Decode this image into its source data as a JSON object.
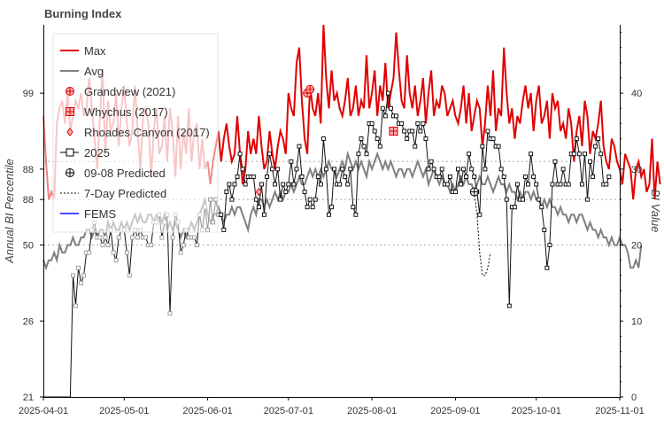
{
  "chart_data": {
    "type": "line",
    "title": "Burning Index",
    "xlabel": "",
    "ylabel_left": "Annual BI Percentile",
    "ylabel_right": "BI Value",
    "x_ticks": [
      "2025-04-01",
      "2025-05-01",
      "2025-06-01",
      "2025-07-01",
      "2025-08-01",
      "2025-09-01",
      "2025-10-01",
      "2025-11-01"
    ],
    "xlim": [
      "2025-04-01",
      "2025-11-01"
    ],
    "ylim_right": [
      0,
      49
    ],
    "right_ticks": [
      0,
      10,
      20,
      30,
      40
    ],
    "left_ticks": [
      {
        "label": "21",
        "bi": 0
      },
      {
        "label": "26",
        "bi": 10
      },
      {
        "label": "50",
        "bi": 20
      },
      {
        "label": "88",
        "bi": 26
      },
      {
        "label": "88",
        "bi": 30
      },
      {
        "label": "99",
        "bi": 40
      }
    ],
    "reference_lines_bi": [
      20,
      26,
      31
    ],
    "grid": false,
    "legend_placement": "top-left",
    "legend": [
      "Max",
      "Avg",
      "Grandview (2021)",
      "Whychus (2017)",
      "Rhoades Canyon (2017)",
      "2025",
      "09-08 Predicted",
      "7-Day Predicted",
      "FEMS"
    ],
    "colors": {
      "max": "#e00000",
      "max_faded": "#f08080",
      "avg": "#808080",
      "avg_faded": "#c0c0c0",
      "current": "#111111",
      "predicted": "#111111",
      "fems": "#4a4aff",
      "reference": "#aaaaaa"
    },
    "series": [
      {
        "name": "Max",
        "start": "2025-04-01",
        "values": [
          37,
          31,
          26,
          27,
          26,
          36,
          38,
          39,
          36,
          40,
          35,
          37,
          39,
          38,
          40,
          37,
          38,
          42,
          38,
          34,
          30,
          37,
          43,
          32,
          39,
          35,
          36,
          40,
          33,
          38,
          41,
          36,
          33,
          35,
          41,
          35,
          30,
          37,
          38,
          36,
          29,
          35,
          38,
          32,
          33,
          37,
          31,
          38,
          35,
          29,
          37,
          30,
          35,
          32,
          38,
          31,
          35,
          36,
          30,
          34,
          30,
          31,
          28,
          31,
          33,
          35,
          31,
          34,
          36,
          33,
          31,
          32,
          37,
          32,
          28,
          30,
          35,
          32,
          34,
          32,
          37,
          33,
          30,
          31,
          35,
          32,
          30,
          33,
          35,
          34,
          32,
          40,
          38,
          37,
          44,
          46,
          39,
          34,
          32,
          41,
          38,
          37,
          40,
          36,
          49,
          42,
          38,
          43,
          39,
          40,
          38,
          37,
          39,
          42,
          37,
          38,
          41,
          37,
          39,
          38,
          45,
          38,
          40,
          43,
          37,
          41,
          39,
          44,
          38,
          40,
          42,
          48,
          43,
          39,
          38,
          45,
          40,
          38,
          41,
          37,
          39,
          42,
          36,
          40,
          43,
          37,
          39,
          38,
          41,
          40,
          37,
          38,
          39,
          37,
          36,
          38,
          41,
          36,
          40,
          35,
          37,
          39,
          38,
          33,
          36,
          41,
          37,
          43,
          35,
          38,
          37,
          46,
          40,
          36,
          38,
          34,
          37,
          36,
          39,
          41,
          38,
          40,
          35,
          39,
          41,
          36,
          37,
          39,
          34,
          40,
          38,
          39,
          35,
          36,
          34,
          38,
          36,
          31,
          35,
          37,
          33,
          39,
          37,
          32,
          35,
          34,
          36,
          39,
          33,
          31,
          30,
          34,
          33,
          31,
          30,
          28,
          32,
          31,
          30,
          26,
          30,
          31,
          29,
          30,
          27,
          28,
          34,
          26,
          31,
          28
        ]
      },
      {
        "name": "Avg",
        "start": "2025-04-01",
        "values": [
          18,
          17,
          18,
          18,
          19,
          18,
          20,
          19,
          19,
          20,
          20,
          21,
          20,
          20,
          21,
          21,
          22,
          22,
          21,
          22,
          21,
          22,
          22,
          21,
          23,
          22,
          23,
          22,
          22,
          23,
          22,
          23,
          22,
          23,
          24,
          23,
          24,
          23,
          23,
          24,
          24,
          23,
          24,
          24,
          23,
          24,
          22,
          23,
          22,
          23,
          22,
          21,
          22,
          21,
          22,
          23,
          22,
          23,
          24,
          25,
          26,
          24,
          23,
          24,
          24,
          25,
          24,
          23,
          24,
          24,
          25,
          24,
          25,
          25,
          24,
          23,
          22,
          24,
          25,
          24,
          26,
          26,
          25,
          26,
          25,
          26,
          27,
          26,
          27,
          26,
          27,
          27,
          28,
          27,
          28,
          29,
          28,
          28,
          29,
          30,
          29,
          30,
          29,
          30,
          29,
          30,
          31,
          30,
          30,
          29,
          30,
          31,
          30,
          32,
          31,
          30,
          31,
          30,
          31,
          30,
          29,
          31,
          30,
          31,
          32,
          31,
          30,
          31,
          30,
          31,
          30,
          29,
          30,
          30,
          29,
          30,
          30,
          29,
          30,
          31,
          30,
          29,
          30,
          28,
          29,
          30,
          29,
          28,
          29,
          28,
          28,
          27,
          28,
          27,
          28,
          29,
          28,
          29,
          28,
          28,
          27,
          28,
          29,
          28,
          28,
          29,
          28,
          27,
          28,
          29,
          28,
          28,
          27,
          28,
          27,
          27,
          26,
          27,
          26,
          27,
          27,
          26,
          27,
          26,
          26,
          25,
          26,
          25,
          26,
          25,
          25,
          24,
          25,
          24,
          24,
          23,
          24,
          24,
          23,
          24,
          24,
          23,
          22,
          23,
          22,
          22,
          21,
          22,
          21,
          21,
          20,
          21,
          20,
          20,
          21,
          20,
          20,
          19,
          17,
          17,
          18,
          17,
          20
        ]
      },
      {
        "name": "2025",
        "start": "2025-04-01",
        "values": [
          0,
          0,
          0,
          0,
          0,
          0,
          0,
          0,
          0,
          0,
          0,
          16,
          12,
          17,
          15,
          16,
          19,
          19,
          22,
          23,
          21,
          21,
          20,
          21,
          20,
          22,
          19,
          18,
          21,
          22,
          22,
          19,
          16,
          21,
          22,
          21,
          22,
          21,
          21,
          20,
          20,
          23,
          23,
          24,
          21,
          23,
          24,
          11,
          21,
          24,
          23,
          19,
          20,
          22,
          21,
          21,
          21,
          20,
          24,
          22,
          25,
          22,
          26,
          23,
          26,
          24,
          24,
          22,
          27,
          28,
          26,
          28,
          29,
          32,
          30,
          28,
          29,
          29,
          29,
          26,
          25,
          28,
          24,
          29,
          32,
          30,
          28,
          30,
          26,
          28,
          27,
          28,
          31,
          28,
          30,
          33,
          29,
          27,
          25,
          26,
          25,
          26,
          29,
          28,
          34,
          30,
          24,
          25,
          30,
          28,
          28,
          30,
          29,
          28,
          30,
          25,
          24,
          32,
          34,
          33,
          32,
          36,
          36,
          35,
          34,
          33,
          38,
          37,
          40,
          38,
          37,
          37,
          36,
          36,
          35,
          34,
          35,
          35,
          33,
          36,
          35,
          36,
          34,
          30,
          31,
          30,
          29,
          29,
          30,
          28,
          28,
          29,
          27,
          27,
          30,
          28,
          30,
          29,
          32,
          30,
          29,
          27,
          24,
          33,
          30,
          35,
          34,
          34,
          33,
          33,
          30,
          29,
          26,
          12,
          25,
          25,
          28,
          26,
          26,
          29,
          28,
          32,
          29,
          28,
          26,
          25,
          22,
          17,
          20,
          28,
          31,
          28,
          28,
          30,
          28,
          28,
          32,
          32,
          34,
          32,
          28,
          32,
          26,
          31,
          29,
          33,
          34,
          32,
          28,
          28,
          29
        ]
      },
      {
        "name": "09-08 Predicted",
        "start": "2025-09-08",
        "values": [
          27
        ]
      },
      {
        "name": "7-Day Predicted",
        "start": "2025-09-08",
        "values": [
          27,
          24,
          19,
          16,
          16,
          17,
          19
        ]
      },
      {
        "name": "Grandview (2021)",
        "points": [
          {
            "x": "2025-07-08",
            "y": 40
          },
          {
            "x": "2025-07-09",
            "y": 40.5
          }
        ]
      },
      {
        "name": "Whychus (2017)",
        "points": [
          {
            "x": "2025-08-09",
            "y": 35
          }
        ]
      },
      {
        "name": "Rhoades Canyon (2017)",
        "points": [
          {
            "x": "2025-06-20",
            "y": 27
          }
        ]
      },
      {
        "name": "FEMS",
        "values": []
      }
    ]
  }
}
